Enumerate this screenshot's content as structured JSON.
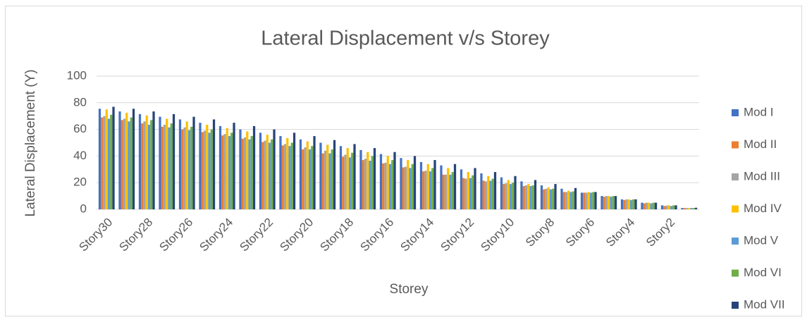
{
  "chart_data": {
    "type": "bar",
    "title": "Lateral Displacement v/s Storey",
    "x_label": "Storey",
    "y_label": "Lateral Displacement (Y)",
    "categories": [
      "Story30",
      null,
      "Story28",
      null,
      "Story26",
      null,
      "Story24",
      null,
      "Story22",
      null,
      "Story20",
      null,
      "Story18",
      null,
      "Story16",
      null,
      "Story14",
      null,
      "Story12",
      null,
      "Story10",
      null,
      "Story8",
      null,
      "Story6",
      null,
      "Story4",
      null,
      "Story2",
      null
    ],
    "series": [
      {
        "name": "Mod I",
        "color": "#4472c4",
        "values": [
          75.5,
          73.5,
          71.5,
          69.5,
          67.5,
          65,
          62.5,
          60,
          57.5,
          55,
          52.5,
          50,
          47.5,
          44.5,
          41.5,
          38.5,
          35.5,
          33,
          30,
          27,
          24,
          21,
          18,
          15.5,
          12.5,
          10,
          7.5,
          5,
          3,
          1
        ]
      },
      {
        "name": "Mod II",
        "color": "#ed7d31",
        "values": [
          69,
          67,
          64.5,
          62,
          60,
          58,
          55.5,
          53,
          50.5,
          48,
          45,
          42,
          39.5,
          37,
          34.5,
          31.5,
          28.5,
          26,
          23.5,
          21.5,
          19,
          17.5,
          15,
          13,
          12.5,
          9.5,
          7,
          4.5,
          2.5,
          1
        ]
      },
      {
        "name": "Mod III",
        "color": "#a5a5a5",
        "values": [
          70,
          68,
          66,
          63.5,
          61.5,
          59,
          56.5,
          54,
          51.5,
          49,
          46.5,
          44,
          41,
          38,
          35,
          32,
          29,
          26,
          23,
          21,
          19.5,
          18,
          15.5,
          13,
          12.5,
          10,
          7.5,
          5,
          2.8,
          1
        ]
      },
      {
        "name": "Mod IV",
        "color": "#ffc000",
        "values": [
          75,
          72.5,
          70.5,
          68,
          66,
          63.5,
          61,
          58.5,
          56,
          53.5,
          51,
          48.5,
          46,
          43,
          40,
          37,
          34,
          31,
          28,
          25,
          22,
          19,
          16.5,
          14,
          13,
          10,
          7.5,
          5,
          3,
          1
        ]
      },
      {
        "name": "Mod V",
        "color": "#5b9bd5",
        "values": [
          68,
          66,
          63.5,
          61.5,
          59.5,
          57.5,
          55,
          52.5,
          50,
          47.5,
          45,
          42,
          39,
          36.5,
          34,
          31,
          28.5,
          26,
          23.5,
          21.5,
          19,
          17.5,
          15,
          13,
          12.5,
          9.5,
          7,
          4.5,
          2.5,
          1
        ]
      },
      {
        "name": "Mod VI",
        "color": "#70ad47",
        "values": [
          71,
          69,
          67,
          64.5,
          62,
          60,
          57.5,
          55,
          52.5,
          50,
          47.5,
          45,
          42.5,
          40,
          37,
          34,
          31,
          28,
          25.5,
          23,
          20,
          18,
          15.5,
          13.5,
          13,
          10,
          7.5,
          5,
          3,
          1
        ]
      },
      {
        "name": "Mod VII",
        "color": "#264478",
        "values": [
          77,
          75.5,
          73.5,
          71.5,
          69.5,
          67.5,
          65,
          62.5,
          60,
          57.5,
          55,
          52,
          49,
          46,
          43,
          40,
          37,
          34,
          31,
          28,
          25,
          22,
          19,
          16,
          13,
          10,
          7.5,
          5,
          3,
          1.2
        ]
      }
    ],
    "ylim": [
      0,
      100
    ],
    "yticks": [
      0,
      20,
      40,
      60,
      80,
      100
    ],
    "grid": true,
    "legend": "right"
  }
}
